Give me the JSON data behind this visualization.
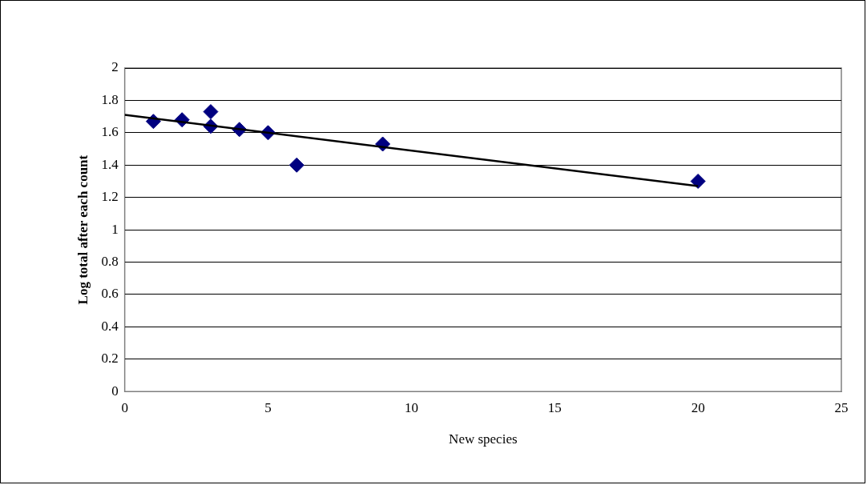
{
  "chart_data": {
    "type": "scatter",
    "xlabel": "New species",
    "ylabel": "Log total after each count",
    "series": [
      {
        "color": "#000080",
        "marker": "diamond",
        "x": [
          1,
          2,
          3,
          3,
          4,
          5,
          6,
          9,
          20
        ],
        "values": [
          1.67,
          1.68,
          1.73,
          1.64,
          1.62,
          1.6,
          1.4,
          1.53,
          1.3
        ]
      },
      {
        "type": "line",
        "color": "#000000",
        "marker": "none",
        "x": [
          0,
          20
        ],
        "values": [
          1.71,
          1.27
        ]
      }
    ],
    "xlim": [
      0,
      25
    ],
    "xticks": [
      0,
      5,
      10,
      15,
      20,
      25
    ],
    "ylim": [
      0,
      2
    ],
    "yticks": [
      0,
      0.2,
      0.4,
      0.6,
      0.8,
      1,
      1.2,
      1.4,
      1.6,
      1.8,
      2
    ],
    "grid": "y",
    "legend": false
  }
}
